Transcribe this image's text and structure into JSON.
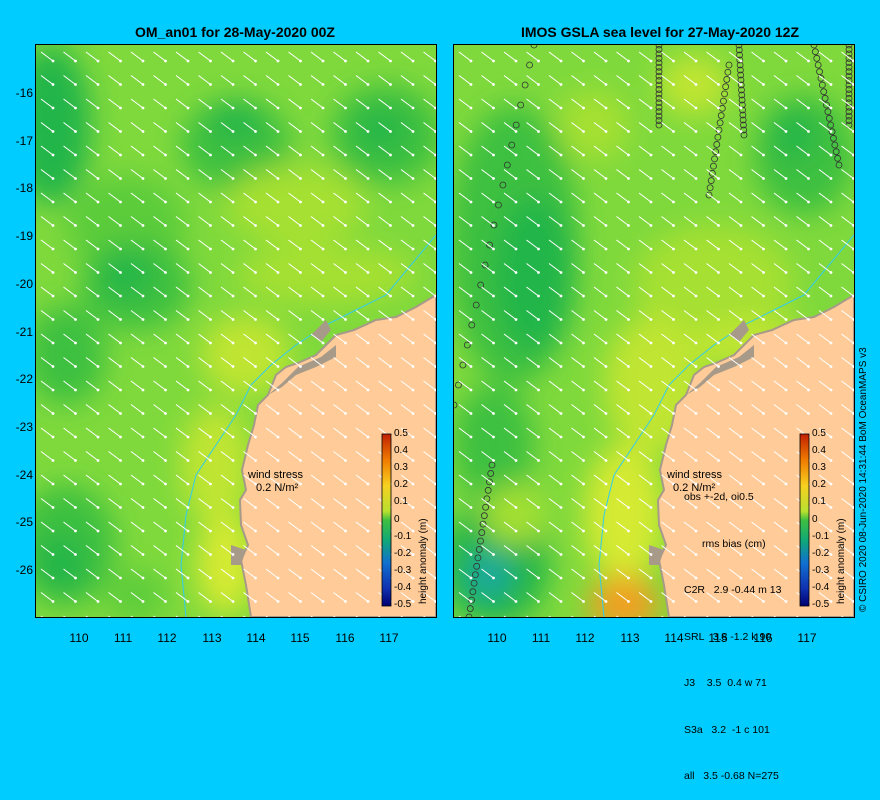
{
  "left_panel": {
    "title": "OM_an01 for 28-May-2020 00Z",
    "wind_label": "wind stress",
    "wind_value": "0.2 N/m²"
  },
  "right_panel": {
    "title": "IMOS GSLA sea level  for 27-May-2020 12Z",
    "wind_label": "wind stress",
    "wind_value": "0.2 N/m²",
    "stats_header": "obs +-2d, oi0.5",
    "stats_columns": "rms bias (cm)",
    "stats_rows": [
      "C2R   2.9 -0.44 m 13",
      "SRL   3.8 -1.2 k 90",
      "J3    3.5  0.4 w 71",
      "S3a   3.2  -1 c 101",
      "all   3.5 -0.68 N=275"
    ]
  },
  "y_axis_labels": [
    "-16",
    "-17",
    "-18",
    "-19",
    "-20",
    "-21",
    "-22",
    "-23",
    "-24",
    "-25",
    "-26"
  ],
  "x_axis_labels": [
    "110",
    "111",
    "112",
    "113",
    "114",
    "115",
    "116",
    "117"
  ],
  "colorbar": {
    "label": "height anomaly (m)",
    "ticks": [
      "0.5",
      "0.4",
      "0.3",
      "0.2",
      "0.1",
      "0",
      "-0.1",
      "-0.2",
      "-0.3",
      "-0.4",
      "-0.5"
    ]
  },
  "credit": "© CSIRO 2020   08-Jun-2020 14:31:44 BoM OceanMAPS v3",
  "colors": {
    "background": "#00ccff",
    "land": "#ffcc99",
    "coast": "#a89a88"
  }
}
